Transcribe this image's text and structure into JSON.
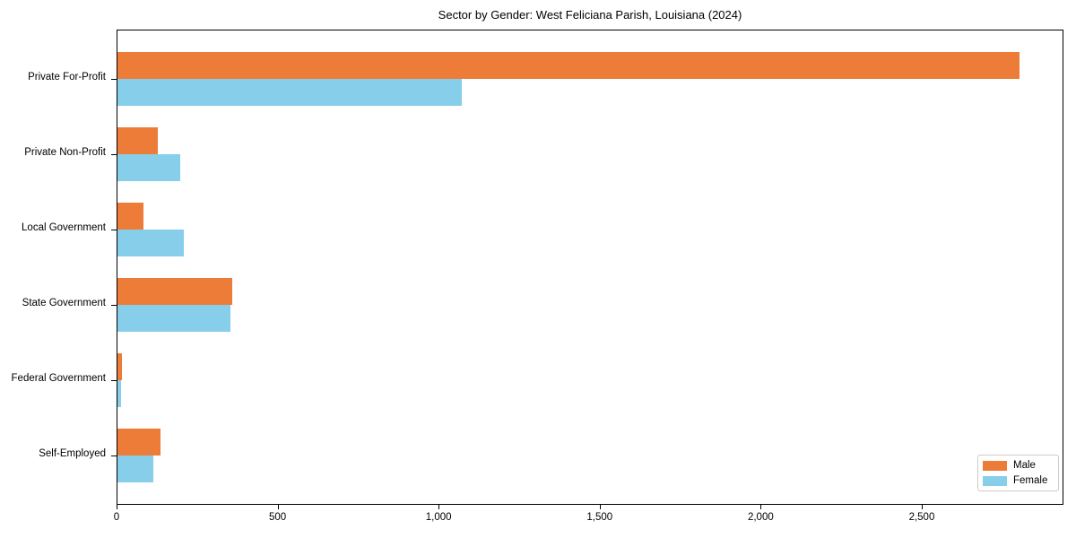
{
  "chart_data": {
    "type": "bar",
    "orientation": "horizontal",
    "grouped": true,
    "title": "Sector by Gender: West Feliciana Parish, Louisiana (2024)",
    "categories": [
      "Private For-Profit",
      "Private Non-Profit",
      "Local Government",
      "State Government",
      "Federal Government",
      "Self-Employed"
    ],
    "series": [
      {
        "name": "Male",
        "color": "#ed7c39",
        "values": [
          2800,
          125,
          80,
          355,
          14,
          135
        ]
      },
      {
        "name": "Female",
        "color": "#87ceeb",
        "values": [
          1070,
          195,
          205,
          350,
          11,
          110
        ]
      }
    ],
    "xlabel": "",
    "ylabel": "",
    "xlim": [
      0,
      2940
    ],
    "xticks": [
      0,
      500,
      1000,
      1500,
      2000,
      2500
    ],
    "xtick_labels": [
      "0",
      "500",
      "1,000",
      "1,500",
      "2,000",
      "2,500"
    ],
    "grid": false,
    "legend_position": "lower right",
    "background_color": "#ffffff",
    "spine_color": "#000000"
  }
}
